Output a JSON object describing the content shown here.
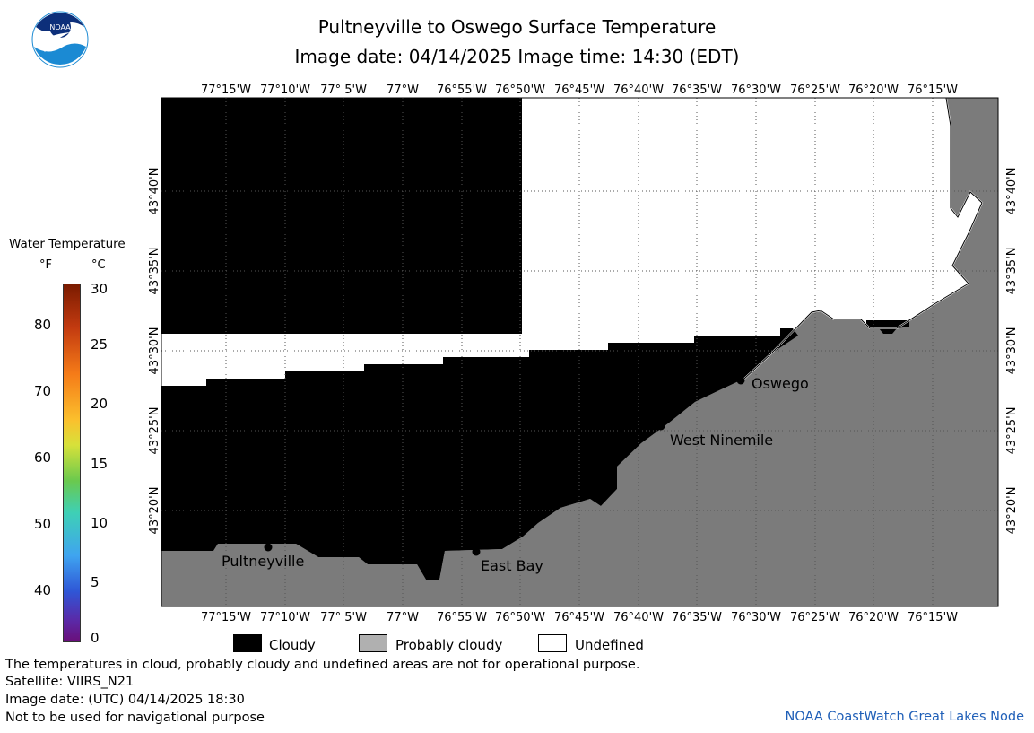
{
  "header": {
    "title": "Pultneyville to Oswego Surface Temperature",
    "subtitle": "Image date: 04/14/2025     Image time: 14:30 (EDT)"
  },
  "logo": {
    "text": "NOAA"
  },
  "map": {
    "lon_labels": [
      "77°15'W",
      "77°10'W",
      "77° 5'W",
      "77°W",
      "76°55'W",
      "76°50'W",
      "76°45'W",
      "76°40'W",
      "76°35'W",
      "76°30'W",
      "76°25'W",
      "76°20'W",
      "76°15'W"
    ],
    "lat_labels": [
      "43°40'N",
      "43°35'N",
      "43°30'N",
      "43°25'N",
      "43°20'N"
    ],
    "places": [
      {
        "name": "Oswego"
      },
      {
        "name": "West Ninemile"
      },
      {
        "name": "Pultneyville"
      },
      {
        "name": "East Bay"
      }
    ],
    "colors": {
      "cloudy": "#000000",
      "probably_cloudy": "#7b7b7b",
      "undefined": "#ffffff",
      "grid": "#555555"
    }
  },
  "scale": {
    "title": "Water Temperature",
    "unit_f": "°F",
    "unit_c": "°C",
    "fahrenheit_ticks": [
      "80",
      "70",
      "60",
      "50",
      "40"
    ],
    "celsius_ticks": [
      "30",
      "25",
      "20",
      "15",
      "10",
      "5",
      "0"
    ]
  },
  "legend": {
    "cloudy": "Cloudy",
    "probably_cloudy": "Probably cloudy",
    "undefined": "Undefined"
  },
  "footer": {
    "line1": "The temperatures in cloud, probably cloudy and undefined areas are not for operational purpose.",
    "line2": "Satellite: VIIRS_N21",
    "line3": "Image date: (UTC) 04/14/2025  18:30",
    "line4": "Not to be used for navigational purpose",
    "credit": "NOAA CoastWatch Great Lakes Node"
  }
}
